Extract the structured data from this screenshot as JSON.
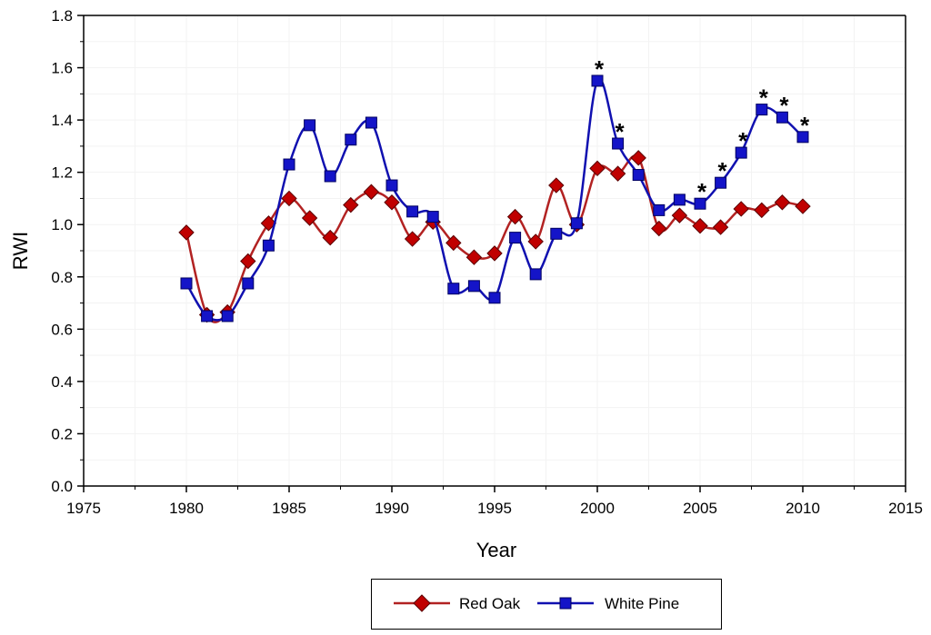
{
  "chart_data": {
    "type": "line",
    "xlabel": "Year",
    "ylabel": "RWI",
    "xlim": [
      1975,
      2015
    ],
    "ylim": [
      0,
      1.8
    ],
    "xticks": [
      1975,
      1980,
      1985,
      1990,
      1995,
      2000,
      2005,
      2010,
      2015
    ],
    "yticks": [
      0.0,
      0.2,
      0.4,
      0.6,
      0.8,
      1.0,
      1.2,
      1.4,
      1.6,
      1.8
    ],
    "ytick_labels": [
      "0.0",
      "0.2",
      "0.4",
      "0.6",
      "0.8",
      "1.0",
      "1.2",
      "1.4",
      "1.6",
      "1.8"
    ],
    "xtick_labels": [
      "1975",
      "1980",
      "1985",
      "1990",
      "1995",
      "2000",
      "2005",
      "2010",
      "2015"
    ],
    "legend_position": "bottom-center",
    "series": [
      {
        "name": "Red Oak",
        "color": "#c00000",
        "line_color": "#b22222",
        "marker": "diamond",
        "x": [
          1980,
          1981,
          1982,
          1983,
          1984,
          1985,
          1986,
          1987,
          1988,
          1989,
          1990,
          1991,
          1992,
          1993,
          1994,
          1995,
          1996,
          1997,
          1998,
          1999,
          2000,
          2001,
          2002,
          2003,
          2004,
          2005,
          2006,
          2007,
          2008,
          2009,
          2010
        ],
        "values": [
          0.97,
          0.655,
          0.665,
          0.86,
          1.005,
          1.1,
          1.025,
          0.95,
          1.075,
          1.125,
          1.085,
          0.945,
          1.01,
          0.93,
          0.875,
          0.89,
          1.03,
          0.935,
          1.15,
          1.0,
          1.215,
          1.195,
          1.255,
          0.985,
          1.035,
          0.995,
          0.99,
          1.06,
          1.055,
          1.085,
          1.07
        ]
      },
      {
        "name": "White Pine",
        "color": "#1414c8",
        "line_color": "#1010b0",
        "marker": "square",
        "x": [
          1980,
          1981,
          1982,
          1983,
          1984,
          1985,
          1986,
          1987,
          1988,
          1989,
          1990,
          1991,
          1992,
          1993,
          1994,
          1995,
          1996,
          1997,
          1998,
          1999,
          2000,
          2001,
          2002,
          2003,
          2004,
          2005,
          2006,
          2007,
          2008,
          2009,
          2010
        ],
        "values": [
          0.775,
          0.65,
          0.65,
          0.775,
          0.92,
          1.23,
          1.38,
          1.185,
          1.325,
          1.39,
          1.15,
          1.05,
          1.03,
          0.755,
          0.765,
          0.72,
          0.95,
          0.81,
          0.965,
          1.005,
          1.55,
          1.31,
          1.19,
          1.055,
          1.095,
          1.08,
          1.16,
          1.275,
          1.44,
          1.41,
          1.335
        ]
      }
    ],
    "annotations": [
      {
        "text": "*",
        "x": 2000,
        "y": 1.55
      },
      {
        "text": "*",
        "x": 2001,
        "y": 1.31
      },
      {
        "text": "*",
        "x": 2005,
        "y": 1.08
      },
      {
        "text": "*",
        "x": 2006,
        "y": 1.16
      },
      {
        "text": "*",
        "x": 2007,
        "y": 1.275
      },
      {
        "text": "*",
        "x": 2008,
        "y": 1.44
      },
      {
        "text": "*",
        "x": 2009,
        "y": 1.41
      },
      {
        "text": "*",
        "x": 2010,
        "y": 1.335
      }
    ]
  }
}
